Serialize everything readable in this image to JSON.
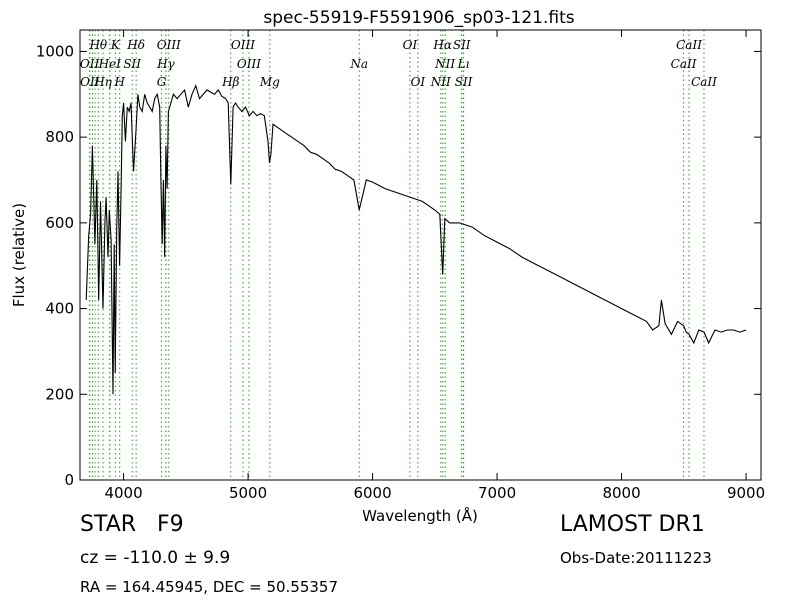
{
  "chart_data": {
    "type": "line",
    "title": "spec-55919-F5591906_sp03-121.fits",
    "xlabel": "Wavelength (Å)",
    "ylabel": "Flux (relative)",
    "xlim": [
      3650,
      9120
    ],
    "ylim": [
      0,
      1050
    ],
    "xticks": [
      4000,
      5000,
      6000,
      7000,
      8000,
      9000
    ],
    "yticks": [
      0,
      200,
      400,
      600,
      800,
      1000
    ],
    "grid": false,
    "line_color": "#000000",
    "marker_color": "#2ca02c",
    "series": [
      {
        "x": [
          3700,
          3720,
          3735,
          3750,
          3770,
          3785,
          3800,
          3815,
          3835,
          3850,
          3860,
          3875,
          3885,
          3900,
          3915,
          3925,
          3933,
          3945,
          3955,
          3968,
          3980,
          3990,
          4000,
          4015,
          4030,
          4045,
          4060,
          4080,
          4101,
          4115,
          4130,
          4150,
          4170,
          4190,
          4210,
          4230,
          4250,
          4270,
          4290,
          4300,
          4310,
          4320,
          4330,
          4340,
          4350,
          4360,
          4380,
          4400,
          4430,
          4460,
          4490,
          4520,
          4550,
          4580,
          4610,
          4640,
          4670,
          4700,
          4730,
          4760,
          4790,
          4820,
          4840,
          4861,
          4880,
          4900,
          4920,
          4950,
          4980,
          5010,
          5040,
          5070,
          5100,
          5130,
          5160,
          5172,
          5183,
          5200,
          5250,
          5300,
          5350,
          5400,
          5450,
          5500,
          5550,
          5600,
          5650,
          5700,
          5750,
          5800,
          5850,
          5893,
          5950,
          6000,
          6100,
          6200,
          6300,
          6400,
          6450,
          6500,
          6540,
          6563,
          6580,
          6620,
          6700,
          6800,
          6900,
          7000,
          7100,
          7200,
          7300,
          7400,
          7500,
          7600,
          7700,
          7800,
          7900,
          8000,
          8100,
          8200,
          8250,
          8300,
          8320,
          8350,
          8400,
          8450,
          8498,
          8520,
          8542,
          8580,
          8620,
          8662,
          8700,
          8750,
          8800,
          8850,
          8900,
          8950,
          9000
        ],
        "values": [
          420,
          570,
          620,
          780,
          550,
          700,
          420,
          650,
          400,
          600,
          660,
          520,
          630,
          560,
          200,
          550,
          250,
          580,
          720,
          500,
          680,
          850,
          880,
          790,
          870,
          860,
          880,
          720,
          820,
          900,
          870,
          860,
          900,
          880,
          870,
          860,
          890,
          900,
          870,
          700,
          550,
          700,
          520,
          780,
          680,
          860,
          880,
          900,
          890,
          900,
          910,
          870,
          900,
          920,
          890,
          900,
          910,
          905,
          900,
          910,
          895,
          890,
          880,
          690,
          870,
          880,
          870,
          860,
          870,
          850,
          860,
          850,
          855,
          850,
          790,
          740,
          760,
          830,
          820,
          810,
          800,
          790,
          780,
          765,
          760,
          750,
          740,
          725,
          720,
          710,
          700,
          630,
          700,
          695,
          680,
          670,
          660,
          650,
          640,
          630,
          620,
          480,
          610,
          600,
          600,
          590,
          570,
          555,
          540,
          520,
          505,
          490,
          475,
          460,
          445,
          430,
          415,
          400,
          385,
          370,
          350,
          360,
          420,
          365,
          340,
          370,
          360,
          345,
          340,
          320,
          350,
          345,
          320,
          350,
          345,
          350,
          350,
          345,
          350
        ]
      }
    ],
    "lines_top": [
      {
        "label": "Hθ",
        "x": 3797
      },
      {
        "label": "K",
        "x": 3934
      },
      {
        "label": "Hδ",
        "x": 4101
      },
      {
        "label": "OIII",
        "x": 4363
      },
      {
        "label": "OIII",
        "x": 4959
      },
      {
        "label": "OI",
        "x": 6300
      },
      {
        "label": "Hα",
        "x": 6563
      },
      {
        "label": "SII",
        "x": 6716
      },
      {
        "label": "CaII",
        "x": 8542
      }
    ],
    "lines_mid": [
      {
        "label": "OII",
        "x": 3727
      },
      {
        "label": "HeI",
        "x": 3889
      },
      {
        "label": "SII",
        "x": 4069
      },
      {
        "label": "Hγ",
        "x": 4340
      },
      {
        "label": "OIII",
        "x": 5007
      },
      {
        "label": "Na",
        "x": 5893
      },
      {
        "label": "NII",
        "x": 6583
      },
      {
        "label": "Lı",
        "x": 6731
      },
      {
        "label": "CaII",
        "x": 8498
      }
    ],
    "lines_low": [
      {
        "label": "OII",
        "x": 3729
      },
      {
        "label": "Hη",
        "x": 3835
      },
      {
        "label": "H",
        "x": 3969
      },
      {
        "label": "G",
        "x": 4305
      },
      {
        "label": "Hβ",
        "x": 4861
      },
      {
        "label": "Mg",
        "x": 5175
      },
      {
        "label": "OI",
        "x": 6364
      },
      {
        "label": "NII",
        "x": 6548
      },
      {
        "label": "SII",
        "x": 6731
      },
      {
        "label": "CaII",
        "x": 8662
      }
    ],
    "extra_dotted_x": [
      3750,
      3771,
      3889,
      4340,
      6583,
      6716,
      8542
    ]
  },
  "info": {
    "class_label": "STAR",
    "subclass": "F9",
    "cz_text": "cz = -110.0 ± 9.9",
    "radec_text": "RA = 164.45945, DEC = 50.55357",
    "survey": "LAMOST DR1",
    "obs_date": "Obs-Date:20111223"
  }
}
